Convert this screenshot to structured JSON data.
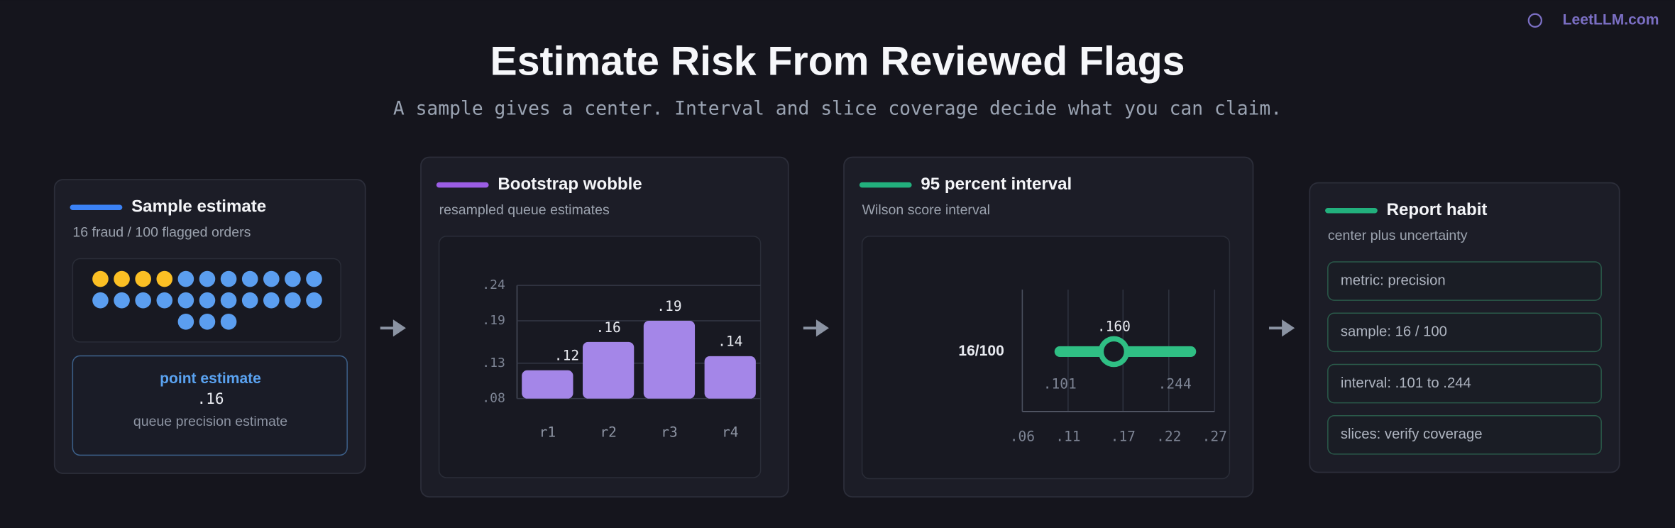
{
  "header": {
    "brand": "LeetLLM.com",
    "title": "Estimate Risk From Reviewed Flags",
    "subtitle": "A sample gives a center. Interval and slice coverage decide what you can claim."
  },
  "panels": [
    {
      "title": "Sample estimate",
      "subtitle": "16 fraud / 100 flagged orders",
      "accent": "#3b82f6",
      "dots": {
        "total": 25,
        "highlighted": 4,
        "per_row": 11,
        "color": "#5b9ef0",
        "highlight_color": "#fbbf24"
      },
      "estimate": {
        "label": "point estimate",
        "value": ".16",
        "caption": "queue precision estimate"
      }
    },
    {
      "title": "Bootstrap wobble",
      "subtitle": "resampled queue estimates",
      "accent": "#9b5de5",
      "chart": {
        "type": "bar",
        "categories": [
          "r1",
          "r2",
          "r3",
          "r4"
        ],
        "values": [
          0.12,
          0.16,
          0.19,
          0.14
        ],
        "value_labels": [
          ".12",
          ".16",
          ".19",
          ".14"
        ],
        "color": "#a486e8",
        "ylim": [
          0.08,
          0.24
        ],
        "yticks": [
          {
            "value": 0.08,
            "label": ".08"
          },
          {
            "value": 0.13,
            "label": ".13"
          },
          {
            "value": 0.19,
            "label": ".19"
          },
          {
            "value": 0.24,
            "label": ".24"
          }
        ],
        "grid": true
      }
    },
    {
      "title": "95 percent interval",
      "subtitle": "Wilson score interval",
      "accent": "#22b07d",
      "chart": {
        "type": "interval",
        "label": "16/100",
        "low": 0.101,
        "high": 0.244,
        "point": 0.16,
        "low_label": ".101",
        "high_label": ".244",
        "point_label": ".160",
        "color": "#2fbf84",
        "xlim": [
          0.06,
          0.27
        ],
        "xticks": [
          {
            "value": 0.06,
            "label": ".06"
          },
          {
            "value": 0.11,
            "label": ".11"
          },
          {
            "value": 0.17,
            "label": ".17"
          },
          {
            "value": 0.22,
            "label": ".22"
          },
          {
            "value": 0.27,
            "label": ".27"
          }
        ],
        "grid": true
      }
    },
    {
      "title": "Report habit",
      "subtitle": "center plus uncertainty",
      "accent": "#22b07d",
      "items": [
        "metric: precision",
        "sample: 16 / 100",
        "interval: .101 to .244",
        "slices: verify coverage"
      ]
    }
  ]
}
